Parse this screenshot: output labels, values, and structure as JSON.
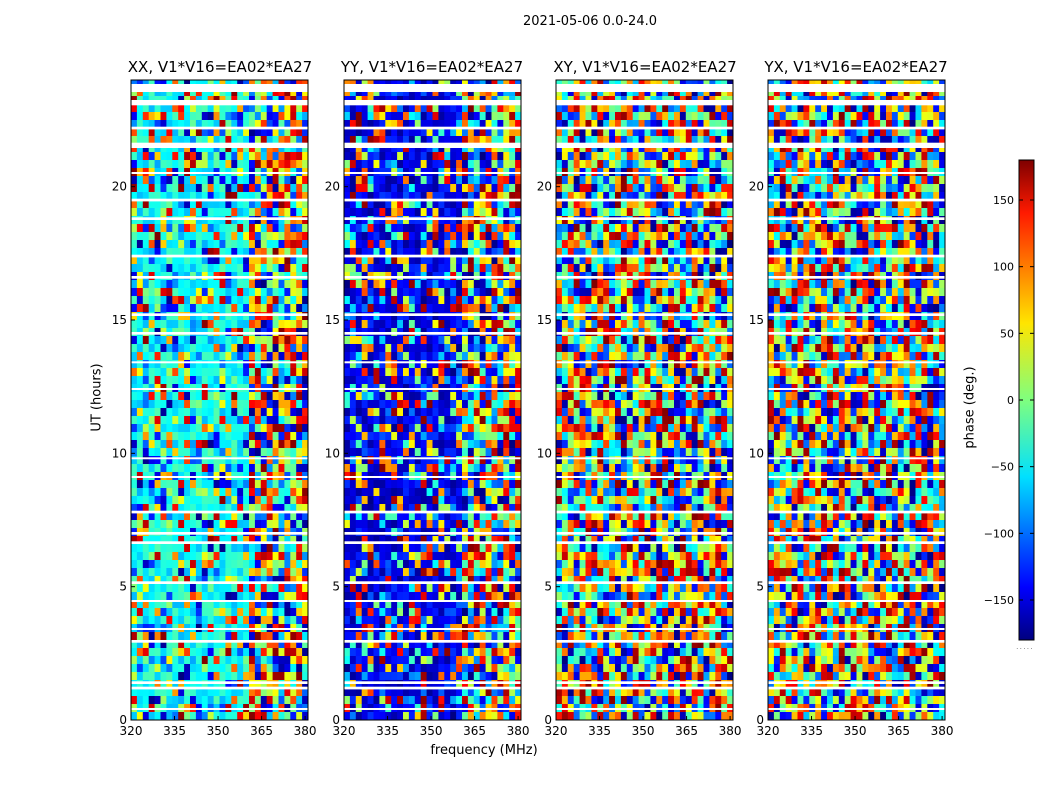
{
  "suptitle": "2021-05-06 0.0-24.0",
  "chart_data": {
    "type": "heatmap",
    "xlabel": "frequency (MHz)",
    "ylabel": "UT (hours)",
    "xlim": [
      320,
      381
    ],
    "ylim": [
      0,
      24
    ],
    "xticks": [
      320,
      335,
      350,
      365,
      380
    ],
    "yticks": [
      0,
      5,
      10,
      15,
      20
    ],
    "colorbar": {
      "label": "phase (deg.)",
      "range": [
        -180,
        180
      ],
      "ticks": [
        150,
        100,
        50,
        0,
        -50,
        -100,
        -150
      ],
      "tick_labels": [
        "150",
        "100",
        "50",
        "0",
        "−50",
        "−100",
        "−150"
      ],
      "colormap": "jet"
    },
    "panels": [
      {
        "title": "XX, V1*V16=EA02*EA27"
      },
      {
        "title": "YY, V1*V16=EA02*EA27"
      },
      {
        "title": "XY, V1*V16=EA02*EA27"
      },
      {
        "title": "YX, V1*V16=EA02*EA27"
      }
    ],
    "gaps_ut": [
      [
        23.55,
        23.85
      ],
      [
        23.05,
        23.25
      ],
      [
        22.15,
        22.25
      ],
      [
        21.45,
        21.65
      ],
      [
        20.5,
        20.55
      ],
      [
        19.45,
        19.55
      ],
      [
        18.75,
        18.85
      ],
      [
        17.35,
        17.45
      ],
      [
        16.55,
        16.65
      ],
      [
        15.15,
        15.25
      ],
      [
        14.45,
        14.55
      ],
      [
        13.4,
        13.45
      ],
      [
        12.4,
        12.45
      ],
      [
        9.8,
        9.85
      ],
      [
        9.1,
        9.15
      ],
      [
        7.75,
        7.85
      ],
      [
        6.95,
        7.05
      ],
      [
        6.6,
        6.7
      ],
      [
        5.1,
        5.2
      ],
      [
        4.45,
        4.5
      ],
      [
        3.4,
        3.45
      ],
      [
        2.9,
        3.0
      ],
      [
        1.35,
        1.45
      ],
      [
        1.15,
        1.25
      ],
      [
        0.4,
        0.45
      ]
    ]
  }
}
